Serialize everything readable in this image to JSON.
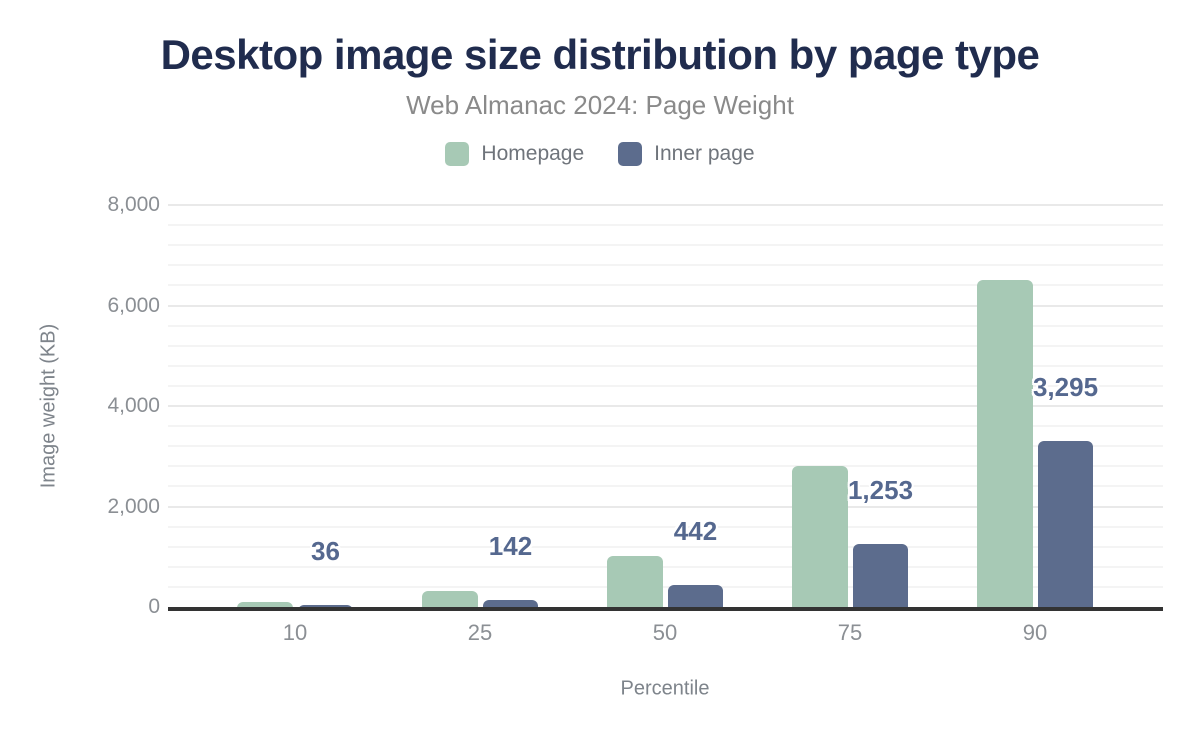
{
  "header": {
    "title": "Desktop image size distribution by page type",
    "subtitle": "Web Almanac 2024: Page Weight"
  },
  "colors": {
    "homepage_series": "#a7c9b5",
    "inner_page_series": "#5c6c8d",
    "title_text": "#202c4e",
    "subtitle_text": "#8a8a8a",
    "axis_tick_text": "#8b8f94",
    "axis_title_text": "#7e848b",
    "value_label_text": "#55688f",
    "axis_line": "#333333",
    "grid_major": "#e9e9e9",
    "grid_minor": "#f4f4f4",
    "background": "#ffffff"
  },
  "chart_data": {
    "type": "bar",
    "title": "Desktop image size distribution by page type",
    "subtitle": "Web Almanac 2024: Page Weight",
    "xlabel": "Percentile",
    "ylabel": "Image weight (KB)",
    "categories": [
      "10",
      "25",
      "50",
      "75",
      "90"
    ],
    "series": [
      {
        "name": "Homepage",
        "color": "#a7c9b5",
        "values": [
          90,
          315,
          1015,
          2805,
          6500
        ],
        "value_labels": [
          "",
          "",
          "",
          "",
          ""
        ]
      },
      {
        "name": "Inner page",
        "color": "#5c6c8d",
        "values": [
          36,
          142,
          442,
          1253,
          3295
        ],
        "value_labels": [
          "36",
          "142",
          "442",
          "1,253",
          "3,295"
        ]
      }
    ],
    "ylim": [
      0,
      8000
    ],
    "ytick_step": 2000,
    "yminor_step": 400,
    "ytick_labels": [
      "0",
      "2,000",
      "4,000",
      "6,000",
      "8,000"
    ],
    "grid": "horizontal",
    "legend_position": "top"
  }
}
